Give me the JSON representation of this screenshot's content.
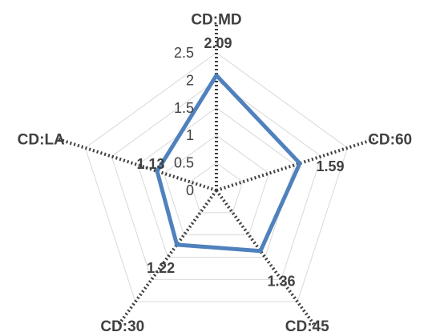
{
  "chart_data": {
    "type": "radar",
    "categories": [
      "CD:MD",
      "CD:60",
      "CD:45",
      "CD:30",
      "CD:LA"
    ],
    "values": [
      2.09,
      1.59,
      1.36,
      1.22,
      1.13
    ],
    "value_labels": [
      "2.09",
      "1.59",
      "1.36",
      "1.22",
      "1.13"
    ],
    "range": [
      0,
      2.5
    ],
    "ticks": [
      "0",
      "0.5",
      "1",
      "1.5",
      "2",
      "2.5"
    ],
    "tick_values": [
      0,
      0.5,
      1,
      1.5,
      2,
      2.5
    ],
    "grid": true,
    "series_color": "#4f81bd",
    "grid_color": "#d9d9d9",
    "axis_color": "#404040"
  }
}
